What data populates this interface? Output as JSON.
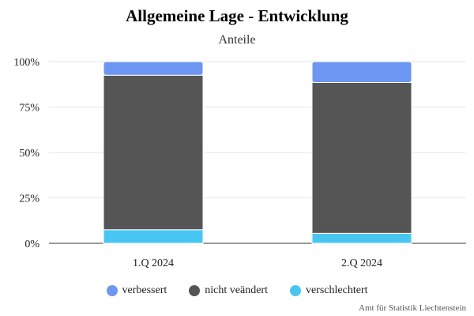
{
  "chart_data": {
    "type": "bar",
    "stacked": true,
    "title": "Allgemeine Lage - Entwicklung",
    "subtitle": "Anteile",
    "categories": [
      "1.Q 2024",
      "2.Q 2024"
    ],
    "series": [
      {
        "name": "verbessert",
        "color": "#6d95f2",
        "values": [
          7.5,
          11.5
        ]
      },
      {
        "name": "nicht veändert",
        "color": "#555555",
        "values": [
          85,
          83
        ]
      },
      {
        "name": "verschlechtert",
        "color": "#48c6f2",
        "values": [
          7.5,
          5.5
        ]
      }
    ],
    "ylim": [
      0,
      100
    ],
    "yticks": [
      0,
      25,
      50,
      75,
      100
    ],
    "ytick_labels": [
      "0%",
      "25%",
      "50%",
      "75%",
      "100%"
    ],
    "grid": true,
    "legend_position": "bottom",
    "credits": "Amt für Statistik Liechtenstein"
  }
}
